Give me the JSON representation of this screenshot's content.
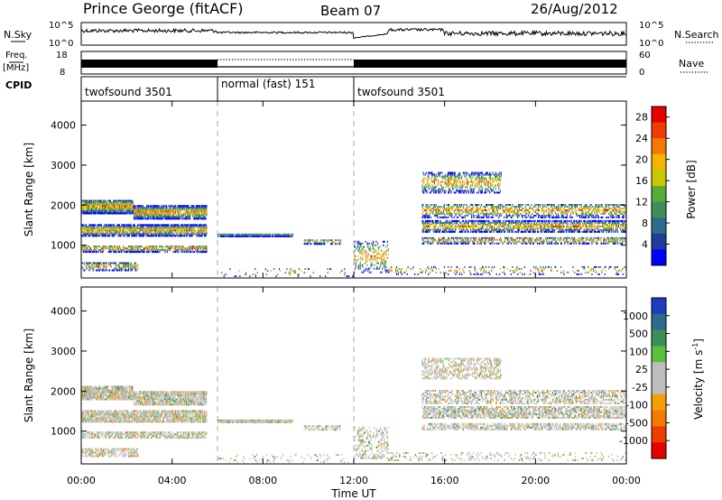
{
  "header": {
    "station": "Prince George (fitACF)",
    "beam": "Beam 07",
    "date": "26/Aug/2012"
  },
  "noise_panel": {
    "left_label": "N.Sky",
    "right_label": "N.Search",
    "left_ticks": [
      "10^5",
      "10^0"
    ],
    "right_ticks": [
      "10^5",
      "10^0"
    ]
  },
  "freq_panel": {
    "left_label_line1": "Freq.",
    "left_label_line2": "[MHz]",
    "right_label": "Nave",
    "left_ticks": [
      "18",
      "8"
    ],
    "right_ticks": [
      "60",
      "0"
    ]
  },
  "cpid_panel": {
    "label": "CPID",
    "segments": [
      {
        "label": "twofsound 3501",
        "start_hour": 0,
        "end_hour": 6
      },
      {
        "label": "normal (fast) 151",
        "start_hour": 6,
        "end_hour": 12
      },
      {
        "label": "twofsound 3501",
        "start_hour": 12,
        "end_hour": 24
      }
    ]
  },
  "colors": {
    "power_scale": [
      "#0000ff",
      "#1e3c9a",
      "#2f6b8c",
      "#3d8f5a",
      "#5aa93c",
      "#c8c800",
      "#f5b400",
      "#f57800",
      "#f03c00",
      "#e60000"
    ],
    "velocity_scale": [
      "#e60000",
      "#f03c00",
      "#f57800",
      "#f5a000",
      "#bebebe",
      "#bebebe",
      "#5abf3c",
      "#3d8f5a",
      "#2f6b8c",
      "#1e3cbe"
    ]
  },
  "chart_data": [
    {
      "type": "heatmap",
      "name": "power",
      "ylabel": "Slant Range [km]",
      "xlabel": "",
      "xlim": [
        0,
        24
      ],
      "ylim": [
        180,
        4600
      ],
      "y_ticks": [
        "1000",
        "2000",
        "3000",
        "4000"
      ],
      "colorbar_label": "Power [dB]",
      "colorbar_ticks": [
        "4",
        "8",
        "12",
        "16",
        "20",
        "24",
        "28"
      ],
      "colorbar_range": [
        0,
        30
      ],
      "dashed_lines_hours": [
        6,
        12
      ]
    },
    {
      "type": "heatmap",
      "name": "velocity",
      "ylabel": "Slant Range [km]",
      "xlabel": "Time UT",
      "xlim": [
        0,
        24
      ],
      "ylim": [
        180,
        4600
      ],
      "y_ticks": [
        "1000",
        "2000",
        "3000",
        "4000"
      ],
      "x_ticks": [
        "00:00",
        "04:00",
        "08:00",
        "12:00",
        "16:00",
        "20:00",
        "00:00"
      ],
      "colorbar_label": "Velocity [m s",
      "colorbar_label_sup": "-1",
      "colorbar_label_end": "]",
      "colorbar_ticks": [
        "1000",
        "500",
        "100",
        "25",
        "-25",
        "-100",
        "-500",
        "-1000"
      ],
      "dashed_lines_hours": [
        6,
        12
      ]
    }
  ]
}
